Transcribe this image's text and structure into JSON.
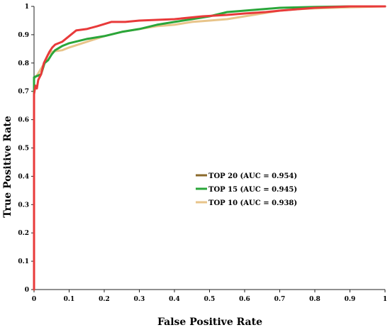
{
  "chart_data": {
    "type": "line",
    "title": "",
    "xlabel": "False Positive Rate",
    "ylabel": "True Positive Rate",
    "xlim": [
      0,
      1
    ],
    "ylim": [
      0,
      1
    ],
    "x_ticks": [
      "0",
      "0.1",
      "0.2",
      "0.3",
      "0.4",
      "0.5",
      "0.6",
      "0.7",
      "0.8",
      "0.9",
      "1"
    ],
    "y_ticks": [
      "0",
      "0.1",
      "0.2",
      "0.3",
      "0.4",
      "0.5",
      "0.6",
      "0.7",
      "0.8",
      "0.9",
      "1"
    ],
    "grid": false,
    "legend_position": "center-right",
    "series": [
      {
        "name": "TOP 20 (AUC = 0.954)",
        "legend_color": "#8b6a2b",
        "color": "#e83a3a",
        "points": [
          [
            0,
            0
          ],
          [
            0,
            0.69
          ],
          [
            0.004,
            0.72
          ],
          [
            0.008,
            0.71
          ],
          [
            0.012,
            0.74
          ],
          [
            0.02,
            0.76
          ],
          [
            0.028,
            0.8
          ],
          [
            0.036,
            0.82
          ],
          [
            0.044,
            0.84
          ],
          [
            0.052,
            0.855
          ],
          [
            0.06,
            0.865
          ],
          [
            0.08,
            0.875
          ],
          [
            0.1,
            0.895
          ],
          [
            0.12,
            0.915
          ],
          [
            0.15,
            0.92
          ],
          [
            0.18,
            0.93
          ],
          [
            0.22,
            0.945
          ],
          [
            0.26,
            0.945
          ],
          [
            0.3,
            0.95
          ],
          [
            0.4,
            0.955
          ],
          [
            0.48,
            0.965
          ],
          [
            0.55,
            0.97
          ],
          [
            0.6,
            0.975
          ],
          [
            0.66,
            0.98
          ],
          [
            0.7,
            0.985
          ],
          [
            0.75,
            0.99
          ],
          [
            0.8,
            0.995
          ],
          [
            0.9,
            1.0
          ],
          [
            1.0,
            1.0
          ]
        ]
      },
      {
        "name": "TOP 15 (AUC = 0.945)",
        "legend_color": "#2aa63a",
        "color": "#2aa63a",
        "points": [
          [
            0,
            0
          ],
          [
            0,
            0.75
          ],
          [
            0.01,
            0.755
          ],
          [
            0.02,
            0.76
          ],
          [
            0.03,
            0.8
          ],
          [
            0.04,
            0.81
          ],
          [
            0.05,
            0.83
          ],
          [
            0.06,
            0.845
          ],
          [
            0.08,
            0.86
          ],
          [
            0.1,
            0.87
          ],
          [
            0.15,
            0.885
          ],
          [
            0.2,
            0.895
          ],
          [
            0.25,
            0.91
          ],
          [
            0.3,
            0.92
          ],
          [
            0.35,
            0.935
          ],
          [
            0.4,
            0.945
          ],
          [
            0.45,
            0.955
          ],
          [
            0.5,
            0.965
          ],
          [
            0.55,
            0.98
          ],
          [
            0.6,
            0.985
          ],
          [
            0.65,
            0.99
          ],
          [
            0.7,
            0.995
          ],
          [
            0.8,
            0.998
          ],
          [
            0.9,
            1.0
          ],
          [
            1.0,
            1.0
          ]
        ]
      },
      {
        "name": "TOP 10 (AUC = 0.938)",
        "legend_color": "#e8c48a",
        "color": "#e8c48a",
        "points": [
          [
            0,
            0
          ],
          [
            0,
            0.745
          ],
          [
            0.01,
            0.76
          ],
          [
            0.02,
            0.78
          ],
          [
            0.03,
            0.8
          ],
          [
            0.04,
            0.83
          ],
          [
            0.05,
            0.84
          ],
          [
            0.08,
            0.845
          ],
          [
            0.1,
            0.855
          ],
          [
            0.15,
            0.875
          ],
          [
            0.2,
            0.895
          ],
          [
            0.25,
            0.91
          ],
          [
            0.3,
            0.92
          ],
          [
            0.35,
            0.93
          ],
          [
            0.4,
            0.935
          ],
          [
            0.45,
            0.945
          ],
          [
            0.5,
            0.95
          ],
          [
            0.55,
            0.955
          ],
          [
            0.6,
            0.965
          ],
          [
            0.65,
            0.975
          ],
          [
            0.7,
            0.985
          ],
          [
            0.75,
            0.99
          ],
          [
            0.8,
            0.993
          ],
          [
            0.9,
            0.997
          ],
          [
            1.0,
            1.0
          ]
        ]
      }
    ]
  }
}
